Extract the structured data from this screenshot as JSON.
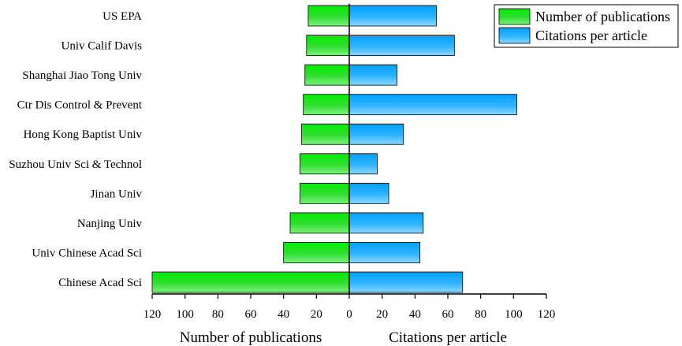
{
  "chart_data": {
    "type": "bar",
    "orientation": "horizontal-butterfly",
    "categories": [
      "US EPA",
      "Univ Calif Davis",
      "Shanghai Jiao Tong Univ",
      "Ctr Dis Control & Prevent",
      "Hong Kong Baptist Univ",
      "Suzhou Univ Sci & Technol",
      "Jinan Univ",
      "Nanjing Univ",
      "Univ Chinese Acad Sci",
      "Chinese Acad Sci"
    ],
    "series": [
      {
        "name": "Number of publications",
        "color": "#00dd00",
        "side": "left",
        "values": [
          25,
          26,
          27,
          28,
          29,
          30,
          30,
          36,
          40,
          120
        ]
      },
      {
        "name": "Citations per article",
        "color": "#1aa0ff",
        "side": "right",
        "values": [
          53,
          64,
          29,
          102,
          33,
          17,
          24,
          45,
          43,
          69
        ]
      }
    ],
    "left_axis": {
      "label": "Number of publications",
      "range": [
        0,
        120
      ],
      "ticks": [
        "120",
        "100",
        "80",
        "60",
        "40",
        "20",
        "0"
      ]
    },
    "right_axis": {
      "label": "Citations per article",
      "range": [
        0,
        120
      ],
      "ticks": [
        "0",
        "20",
        "40",
        "60",
        "80",
        "100",
        "120"
      ]
    },
    "legend": {
      "placement": "top-right",
      "entries": [
        "Number of publications",
        "Citations per article"
      ]
    },
    "grid": false
  }
}
